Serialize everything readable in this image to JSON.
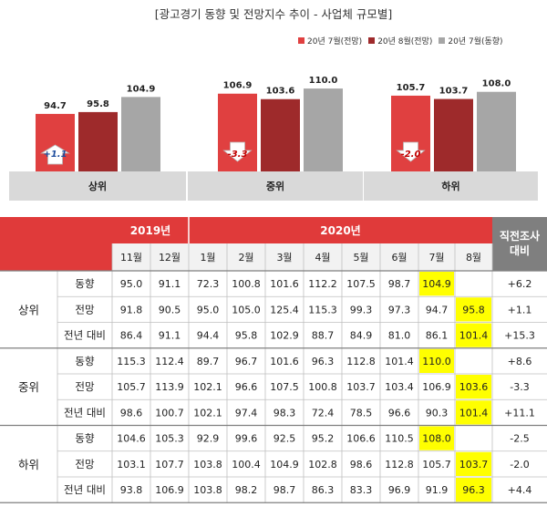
{
  "title": "[광고경기 동향 및 전망지수 추이 - 사업체 규모별]",
  "chart_data": {
    "type": "bar",
    "categories": [
      "상위",
      "중위",
      "하위"
    ],
    "series": [
      {
        "name": "20년 7월(전망)",
        "values": [
          94.7,
          106.9,
          105.7
        ],
        "color": "#e04040"
      },
      {
        "name": "20년 8월(전망)",
        "values": [
          95.8,
          103.6,
          103.7
        ],
        "color": "#9e2a2b"
      },
      {
        "name": "20년 7월(동향)",
        "values": [
          104.9,
          110.0,
          108.0
        ],
        "color": "#a6a6a6"
      }
    ],
    "value_labels": [
      [
        "94.7",
        "95.8",
        "104.9"
      ],
      [
        "106.9",
        "103.6",
        "110.0"
      ],
      [
        "105.7",
        "103.7",
        "108.0"
      ]
    ],
    "changes": [
      {
        "label": "+1.1",
        "direction": "up"
      },
      {
        "label": "-3.3",
        "direction": "down"
      },
      {
        "label": "-2.0",
        "direction": "down"
      }
    ],
    "legend_position": "top-right"
  },
  "table": {
    "years": [
      {
        "label": "2019년",
        "span": 2
      },
      {
        "label": "2020년",
        "span": 8
      }
    ],
    "last_header": "직전조사\n대비",
    "months": [
      "11월",
      "12월",
      "1월",
      "2월",
      "3월",
      "4월",
      "5월",
      "6월",
      "7월",
      "8월"
    ],
    "groups": [
      {
        "name": "상위",
        "rows": [
          {
            "label": "동향",
            "values": [
              "95.0",
              "91.1",
              "72.3",
              "100.8",
              "101.6",
              "112.2",
              "107.5",
              "98.7",
              "104.9",
              ""
            ],
            "change": "+6.2",
            "highlight": 8
          },
          {
            "label": "전망",
            "values": [
              "91.8",
              "90.5",
              "95.0",
              "105.0",
              "125.4",
              "115.3",
              "99.3",
              "97.3",
              "94.7",
              "95.8"
            ],
            "change": "+1.1",
            "highlight": 9
          },
          {
            "label": "전년 대비",
            "values": [
              "86.4",
              "91.1",
              "94.4",
              "95.8",
              "102.9",
              "88.7",
              "84.9",
              "81.0",
              "86.1",
              "101.4"
            ],
            "change": "+15.3",
            "highlight": 9
          }
        ]
      },
      {
        "name": "중위",
        "rows": [
          {
            "label": "동향",
            "values": [
              "115.3",
              "112.4",
              "89.7",
              "96.7",
              "101.6",
              "96.3",
              "112.8",
              "101.4",
              "110.0",
              ""
            ],
            "change": "+8.6",
            "highlight": 8
          },
          {
            "label": "전망",
            "values": [
              "105.7",
              "113.9",
              "102.1",
              "96.6",
              "107.5",
              "100.8",
              "103.7",
              "103.4",
              "106.9",
              "103.6"
            ],
            "change": "-3.3",
            "highlight": 9
          },
          {
            "label": "전년 대비",
            "values": [
              "98.6",
              "100.7",
              "102.1",
              "97.4",
              "98.3",
              "72.4",
              "78.5",
              "96.6",
              "90.3",
              "101.4"
            ],
            "change": "+11.1",
            "highlight": 9
          }
        ]
      },
      {
        "name": "하위",
        "rows": [
          {
            "label": "동향",
            "values": [
              "104.6",
              "105.3",
              "92.9",
              "99.6",
              "92.5",
              "95.2",
              "106.6",
              "110.5",
              "108.0",
              ""
            ],
            "change": "-2.5",
            "highlight": 8
          },
          {
            "label": "전망",
            "values": [
              "103.1",
              "107.7",
              "103.8",
              "100.4",
              "104.9",
              "102.8",
              "98.6",
              "112.8",
              "105.7",
              "103.7"
            ],
            "change": "-2.0",
            "highlight": 9
          },
          {
            "label": "전년 대비",
            "values": [
              "93.8",
              "106.9",
              "103.8",
              "98.2",
              "98.7",
              "86.3",
              "83.3",
              "96.9",
              "91.9",
              "96.3"
            ],
            "change": "+4.4",
            "highlight": 9
          }
        ]
      }
    ],
    "colors": {
      "header_red": "#e03a3a",
      "header_gray": "#7f7f7f",
      "month_bg": "#f2f2f2",
      "highlight": "#ffff00",
      "grid": "#bfbfbf"
    }
  }
}
